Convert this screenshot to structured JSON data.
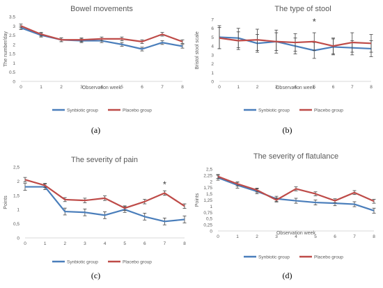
{
  "figure": {
    "series_colors": [
      "#4a7ebb",
      "#be4b48"
    ]
  },
  "chart_data": [
    {
      "type": "line",
      "title": "Bowel movements",
      "xlabel": "Observation week",
      "ylabel": "The number/day",
      "x": [
        0,
        1,
        2,
        3,
        4,
        5,
        6,
        7,
        8
      ],
      "xticks": [
        "0",
        "1",
        "2",
        "3",
        "4",
        "5",
        "6",
        "7",
        "8"
      ],
      "ylim": [
        0,
        3.5
      ],
      "yticks": [
        "0",
        "0.5",
        "1",
        "1.5",
        "2",
        "2.5",
        "3",
        "3.5"
      ],
      "grid": false,
      "legend": "bottom",
      "caption": "(a)",
      "asterisk": null,
      "series": [
        {
          "name": "Synbiotic group",
          "values": [
            2.9,
            2.5,
            2.25,
            2.2,
            2.2,
            2.0,
            1.75,
            2.1,
            1.9
          ],
          "errors": [
            0.1,
            0.1,
            0.1,
            0.1,
            0.1,
            0.1,
            0.1,
            0.1,
            0.1
          ]
        },
        {
          "name": "Placebo group",
          "values": [
            3.0,
            2.55,
            2.25,
            2.25,
            2.3,
            2.3,
            2.15,
            2.55,
            2.15
          ],
          "errors": [
            0.1,
            0.1,
            0.1,
            0.1,
            0.1,
            0.1,
            0.1,
            0.1,
            0.1
          ]
        }
      ]
    },
    {
      "type": "line",
      "title": "The type of stool",
      "xlabel": "Observation week",
      "ylabel": "Bristol stool scale",
      "x": [
        0,
        1,
        2,
        3,
        4,
        5,
        6,
        7,
        8
      ],
      "xticks": [
        "0",
        "1",
        "2",
        "3",
        "4",
        "5",
        "6",
        "7",
        "8"
      ],
      "ylim": [
        0,
        7
      ],
      "yticks": [
        "0",
        "1",
        "2",
        "3",
        "4",
        "5",
        "6",
        "7"
      ],
      "grid": false,
      "legend": "bottom",
      "caption": "(b)",
      "asterisk": {
        "text": "*",
        "x": 5,
        "y": 6.8
      },
      "series": [
        {
          "name": "Synbiotic group",
          "values": [
            5.0,
            4.9,
            4.3,
            4.5,
            4.0,
            3.5,
            3.9,
            3.8,
            3.7
          ],
          "errors": [
            1.3,
            1.1,
            1.0,
            1.0,
            0.9,
            0.9,
            0.9,
            0.8,
            0.9
          ]
        },
        {
          "name": "Placebo group",
          "values": [
            4.9,
            4.6,
            4.7,
            4.5,
            4.4,
            4.5,
            4.0,
            4.4,
            4.3
          ],
          "errors": [
            1.2,
            1.0,
            1.2,
            1.3,
            1.0,
            1.0,
            0.9,
            1.1,
            1.0
          ]
        }
      ]
    },
    {
      "type": "line",
      "title": "The severity of pain",
      "xlabel": "",
      "ylabel": "Points",
      "x": [
        0,
        1,
        2,
        3,
        4,
        5,
        6,
        7,
        8
      ],
      "xticks": [
        "0",
        "1",
        "2",
        "3",
        "4",
        "5",
        "6",
        "7",
        "8"
      ],
      "ylim": [
        0,
        2.5
      ],
      "yticks": [
        "0",
        "0,5",
        "1",
        "1,5",
        "2",
        "2,5"
      ],
      "grid": false,
      "legend": "bottom",
      "caption": "(c)",
      "asterisk": {
        "text": "*",
        "x": 7,
        "y": 1.9
      },
      "series": [
        {
          "name": "Synbiotic group",
          "values": [
            1.8,
            1.8,
            0.93,
            0.9,
            0.8,
            1.0,
            0.75,
            0.58,
            0.65
          ],
          "errors": [
            0.12,
            0.1,
            0.12,
            0.12,
            0.12,
            0.1,
            0.12,
            0.12,
            0.12
          ]
        },
        {
          "name": "Placebo group",
          "values": [
            2.05,
            1.85,
            1.35,
            1.32,
            1.4,
            1.05,
            1.28,
            1.58,
            1.12
          ],
          "errors": [
            0.08,
            0.07,
            0.07,
            0.08,
            0.08,
            0.08,
            0.08,
            0.08,
            0.08
          ]
        }
      ]
    },
    {
      "type": "line",
      "title": "The severity of flatulance",
      "xlabel": "Observation week",
      "ylabel": "Points",
      "x": [
        0,
        1,
        2,
        3,
        4,
        5,
        6,
        7,
        8
      ],
      "xticks": [
        "0",
        "1",
        "2",
        "3",
        "4",
        "5",
        "6",
        "7",
        "8"
      ],
      "ylim": [
        0,
        2.5
      ],
      "yticks": [
        "0",
        "0,25",
        "0,5",
        "0,75",
        "1",
        "1,25",
        "1,5",
        "1,75",
        "2",
        "2,25",
        "2,5"
      ],
      "grid": false,
      "legend": "bottom",
      "caption": "(d)",
      "asterisk": null,
      "series": [
        {
          "name": "Synbiotic group",
          "values": [
            2.15,
            1.85,
            1.6,
            1.3,
            1.22,
            1.15,
            1.12,
            1.08,
            0.82
          ],
          "errors": [
            0.1,
            0.12,
            0.1,
            0.1,
            0.1,
            0.1,
            0.1,
            0.1,
            0.1
          ]
        },
        {
          "name": "Placebo group",
          "values": [
            2.2,
            1.9,
            1.65,
            1.25,
            1.7,
            1.5,
            1.22,
            1.55,
            1.2
          ],
          "errors": [
            0.08,
            0.08,
            0.08,
            0.08,
            0.08,
            0.08,
            0.08,
            0.08,
            0.08
          ]
        }
      ]
    }
  ]
}
